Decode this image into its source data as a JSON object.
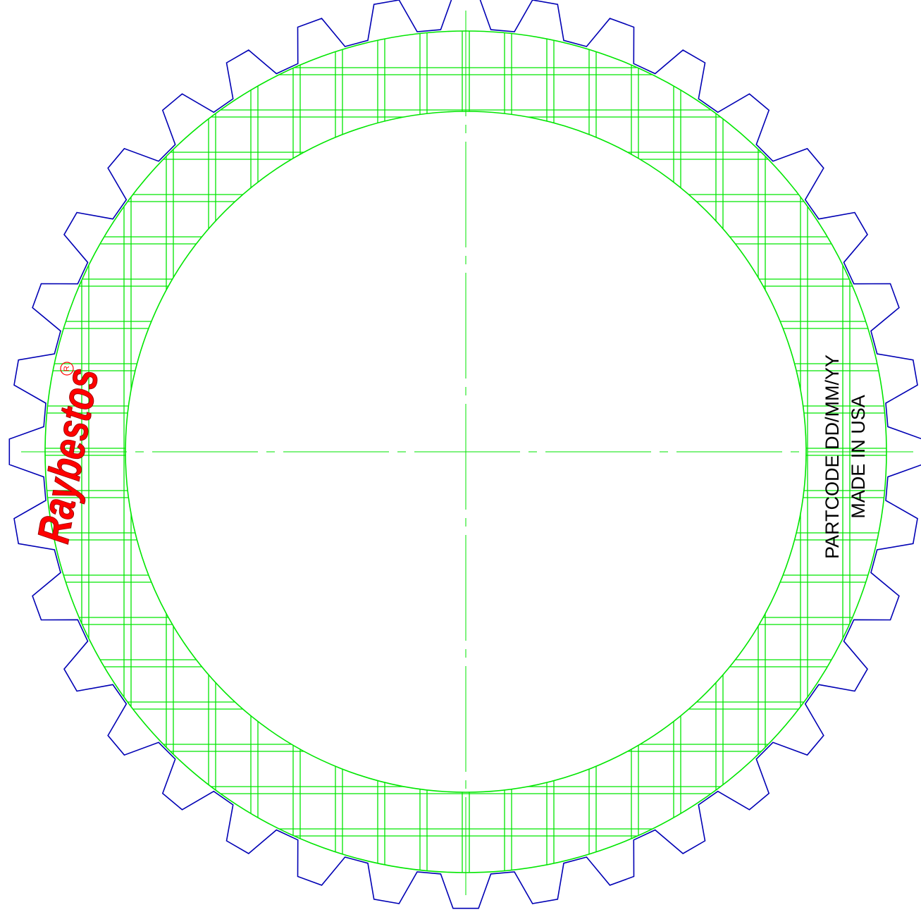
{
  "logo": {
    "text": "Raybestos",
    "registered_mark": "R",
    "color": "#ff0000"
  },
  "marking": {
    "line1": "PARTCODE DD/MM/YY",
    "line2": "MADE IN USA"
  },
  "plate": {
    "outline_color": "#0000b4",
    "friction_color": "#00e600",
    "centerline_color": "#00e600",
    "tooth_count": 36
  }
}
